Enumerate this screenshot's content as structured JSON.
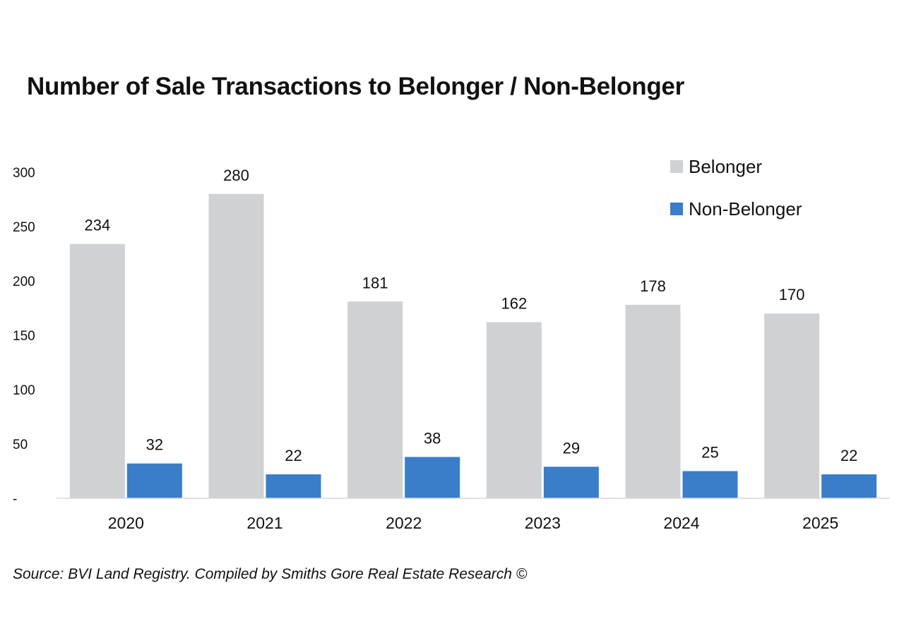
{
  "title": "Number of Sale Transactions to Belonger / Non-Belonger",
  "source": "Source: BVI Land Registry. Compiled by Smiths Gore Real Estate Research ©",
  "chart_data": {
    "type": "bar",
    "title": "Number of Sale Transactions to Belonger / Non-Belonger",
    "xlabel": "",
    "ylabel": "",
    "categories": [
      "2020",
      "2021",
      "2022",
      "2023",
      "2024",
      "2025"
    ],
    "series": [
      {
        "name": "Belonger",
        "color": "#d0d1d3",
        "values": [
          234,
          280,
          181,
          162,
          178,
          170
        ]
      },
      {
        "name": "Non-Belonger",
        "color": "#3a7dc9",
        "values": [
          32,
          22,
          38,
          29,
          25,
          22
        ]
      }
    ],
    "ylim": [
      0,
      300
    ],
    "yticks": [
      0,
      50,
      100,
      150,
      200,
      250,
      300
    ],
    "ytick_labels": [
      "-",
      "50",
      "100",
      "150",
      "200",
      "250",
      "300"
    ],
    "grid": false,
    "legend_position": "top-right",
    "data_labels": true
  }
}
